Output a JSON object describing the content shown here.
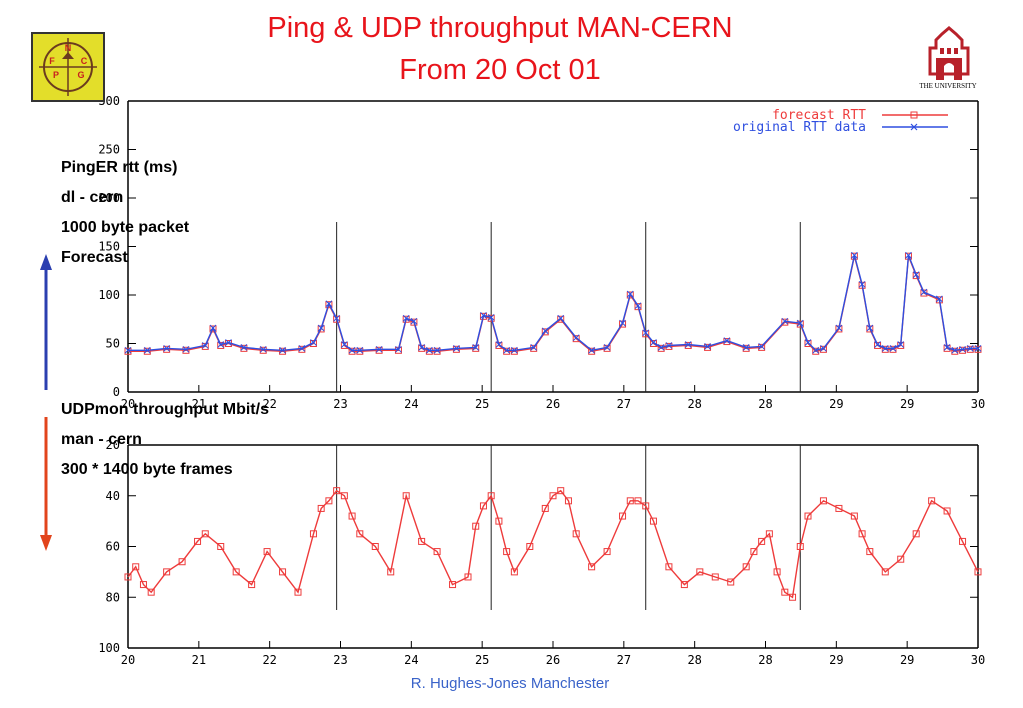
{
  "slide": {
    "title_line1": "Ping & UDP throughput MAN-CERN",
    "title_line2": "From 20 Oct 01",
    "footer": "R. Hughes-Jones  Manchester",
    "logo_left_letters": [
      "N",
      "F",
      "C",
      "P",
      "G"
    ],
    "logo_right_text": "THE UNIVERSITY",
    "top_notes": [
      "PingER rtt (ms)",
      "dl - cern",
      "1000 byte packet",
      "Forecast"
    ],
    "bottom_notes": [
      "UDPmon throughput Mbit/s",
      "man - cern",
      "300 * 1400 byte frames"
    ],
    "colors": {
      "title": "#e8141b",
      "footer": "#3a63c9",
      "up_arrow": "#2b3fb0",
      "down_arrow": "#e2441c",
      "forecast": "#ee3b3b",
      "original": "#2f4fe0"
    }
  },
  "chart_data": [
    {
      "type": "line",
      "name": "ping_rtt",
      "x_tick_labels": [
        "20",
        "21",
        "22",
        "23",
        "24",
        "25",
        "26",
        "27",
        "28",
        "28",
        "29",
        "29",
        "30"
      ],
      "y_ticks": [
        0,
        50,
        100,
        150,
        200,
        250,
        300
      ],
      "y_tick_labels": [
        "0",
        "50",
        "100",
        "150",
        "200",
        "250",
        "300"
      ],
      "xlim": [
        20,
        31
      ],
      "ylim": [
        0,
        300
      ],
      "vlines": [
        22.7,
        24.7,
        26.7,
        28.7
      ],
      "legend": [
        "forecast RTT",
        "original RTT data"
      ],
      "legend_position": "top-right",
      "x": [
        20.0,
        20.25,
        20.5,
        20.75,
        21.0,
        21.1,
        21.2,
        21.3,
        21.5,
        21.75,
        22.0,
        22.25,
        22.4,
        22.5,
        22.6,
        22.7,
        22.8,
        22.9,
        23.0,
        23.25,
        23.5,
        23.6,
        23.7,
        23.8,
        23.9,
        24.0,
        24.25,
        24.5,
        24.6,
        24.7,
        24.8,
        24.9,
        25.0,
        25.25,
        25.4,
        25.6,
        25.8,
        26.0,
        26.2,
        26.4,
        26.5,
        26.6,
        26.7,
        26.8,
        26.9,
        27.0,
        27.25,
        27.5,
        27.75,
        28.0,
        28.2,
        28.5,
        28.7,
        28.8,
        28.9,
        29.0,
        29.2,
        29.4,
        29.5,
        29.6,
        29.7,
        29.8,
        29.9,
        30.0,
        30.1,
        30.2,
        30.3,
        30.5,
        30.6,
        30.7,
        30.8,
        30.9,
        31.0
      ],
      "series": [
        {
          "name": "forecast RTT",
          "values": [
            42,
            42,
            44,
            43,
            47,
            65,
            48,
            50,
            45,
            43,
            42,
            44,
            50,
            65,
            90,
            75,
            48,
            42,
            42,
            43,
            43,
            75,
            72,
            45,
            42,
            42,
            44,
            45,
            78,
            76,
            48,
            42,
            42,
            45,
            62,
            75,
            55,
            42,
            45,
            70,
            100,
            88,
            60,
            50,
            45,
            47,
            48,
            46,
            52,
            45,
            46,
            72,
            70,
            50,
            42,
            44,
            65,
            140,
            110,
            65,
            48,
            44,
            44,
            48,
            140,
            120,
            102,
            95,
            45,
            42,
            43,
            44,
            44
          ]
        },
        {
          "name": "original RTT data",
          "values": [
            43,
            43,
            45,
            44,
            48,
            66,
            49,
            51,
            46,
            44,
            43,
            45,
            51,
            66,
            91,
            76,
            49,
            43,
            43,
            44,
            44,
            76,
            73,
            46,
            43,
            43,
            45,
            46,
            79,
            77,
            49,
            43,
            43,
            46,
            63,
            76,
            56,
            43,
            46,
            71,
            101,
            89,
            61,
            51,
            46,
            48,
            49,
            47,
            53,
            46,
            47,
            73,
            71,
            51,
            43,
            45,
            66,
            141,
            111,
            66,
            49,
            45,
            45,
            49,
            141,
            121,
            103,
            96,
            46,
            43,
            44,
            45,
            45
          ]
        }
      ]
    },
    {
      "type": "line",
      "name": "udp_throughput",
      "x_tick_labels": [
        "20",
        "21",
        "22",
        "23",
        "24",
        "25",
        "26",
        "27",
        "28",
        "28",
        "29",
        "29",
        "30"
      ],
      "y_ticks": [
        20,
        40,
        60,
        80,
        100
      ],
      "y_tick_labels": [
        "20",
        "40",
        "60",
        "80",
        "100"
      ],
      "xlim": [
        20,
        31
      ],
      "ylim": [
        20,
        100
      ],
      "y_inverted": true,
      "vlines": [
        22.7,
        24.7,
        26.7,
        28.7
      ],
      "x": [
        20.0,
        20.1,
        20.2,
        20.3,
        20.5,
        20.7,
        20.9,
        21.0,
        21.2,
        21.4,
        21.6,
        21.8,
        22.0,
        22.2,
        22.4,
        22.5,
        22.6,
        22.7,
        22.8,
        22.9,
        23.0,
        23.2,
        23.4,
        23.6,
        23.8,
        24.0,
        24.2,
        24.4,
        24.5,
        24.6,
        24.7,
        24.8,
        24.9,
        25.0,
        25.2,
        25.4,
        25.5,
        25.6,
        25.7,
        25.8,
        26.0,
        26.2,
        26.4,
        26.5,
        26.6,
        26.7,
        26.8,
        27.0,
        27.2,
        27.4,
        27.6,
        27.8,
        28.0,
        28.1,
        28.2,
        28.3,
        28.4,
        28.5,
        28.6,
        28.7,
        28.8,
        29.0,
        29.2,
        29.4,
        29.5,
        29.6,
        29.8,
        30.0,
        30.2,
        30.4,
        30.6,
        30.8,
        31.0
      ],
      "series": [
        {
          "name": "throughput",
          "values": [
            72,
            68,
            75,
            78,
            70,
            66,
            58,
            55,
            60,
            70,
            75,
            62,
            70,
            78,
            55,
            45,
            42,
            38,
            40,
            48,
            55,
            60,
            70,
            40,
            58,
            62,
            75,
            72,
            52,
            44,
            40,
            50,
            62,
            70,
            60,
            45,
            40,
            38,
            42,
            55,
            68,
            62,
            48,
            42,
            42,
            44,
            50,
            68,
            75,
            70,
            72,
            74,
            68,
            62,
            58,
            55,
            70,
            78,
            80,
            60,
            48,
            42,
            45,
            48,
            55,
            62,
            70,
            65,
            55,
            42,
            46,
            58,
            70
          ]
        }
      ]
    }
  ]
}
